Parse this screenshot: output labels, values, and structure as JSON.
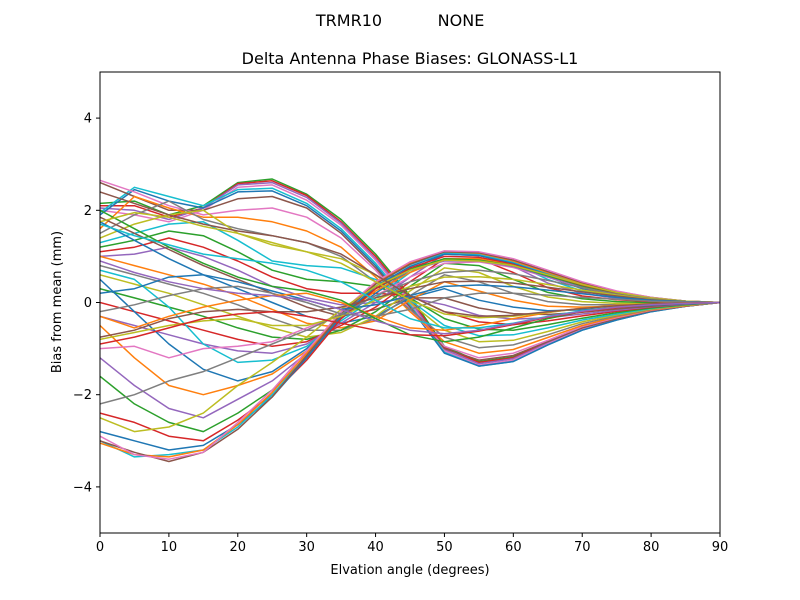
{
  "chart_data": {
    "type": "line",
    "suptitle_left": "TRMR10",
    "suptitle_right": "NONE",
    "title": "Delta Antenna Phase Biases: GLONASS-L1",
    "xlabel": "Elvation angle (degrees)",
    "ylabel": "Bias from mean (mm)",
    "xlim": [
      0,
      90
    ],
    "ylim": [
      -5,
      5
    ],
    "xticks": [
      0,
      10,
      20,
      30,
      40,
      50,
      60,
      70,
      80,
      90
    ],
    "yticks": [
      -4,
      -2,
      0,
      2,
      4
    ],
    "grid": false,
    "legend": "none",
    "x": [
      0,
      5,
      10,
      15,
      20,
      25,
      30,
      35,
      40,
      45,
      50,
      55,
      60,
      65,
      70,
      75,
      80,
      85,
      90
    ],
    "series": [
      {
        "color": "#2ca02c",
        "values": [
          2.15,
          2.2,
          1.9,
          2.1,
          2.6,
          2.68,
          2.35,
          1.8,
          1.05,
          0.15,
          -0.95,
          -1.28,
          -1.18,
          -0.85,
          -0.55,
          -0.35,
          -0.18,
          -0.08,
          0.0
        ]
      },
      {
        "color": "#d62728",
        "values": [
          2.1,
          2.1,
          1.85,
          2.05,
          2.58,
          2.64,
          2.32,
          1.75,
          1.0,
          0.1,
          -0.98,
          -1.3,
          -1.2,
          -0.86,
          -0.56,
          -0.36,
          -0.18,
          -0.08,
          0.0
        ]
      },
      {
        "color": "#9467bd",
        "values": [
          2.05,
          2.0,
          1.8,
          2.05,
          2.55,
          2.6,
          2.28,
          1.72,
          0.95,
          0.05,
          -1.02,
          -1.33,
          -1.22,
          -0.88,
          -0.57,
          -0.36,
          -0.19,
          -0.08,
          0.0
        ]
      },
      {
        "color": "#e377c2",
        "values": [
          2.0,
          1.9,
          1.75,
          2.0,
          2.5,
          2.55,
          2.22,
          1.68,
          0.92,
          0.0,
          -1.05,
          -1.36,
          -1.25,
          -0.9,
          -0.58,
          -0.37,
          -0.19,
          -0.08,
          0.0
        ]
      },
      {
        "color": "#17becf",
        "values": [
          1.95,
          2.5,
          2.3,
          2.1,
          2.45,
          2.48,
          2.15,
          1.6,
          0.85,
          -0.05,
          -1.08,
          -1.38,
          -1.28,
          -0.92,
          -0.6,
          -0.38,
          -0.2,
          -0.08,
          0.0
        ]
      },
      {
        "color": "#1f77b4",
        "values": [
          1.9,
          2.45,
          2.2,
          2.05,
          2.4,
          2.42,
          2.1,
          1.55,
          0.8,
          -0.1,
          -1.1,
          -1.38,
          -1.28,
          -0.92,
          -0.6,
          -0.38,
          -0.2,
          -0.08,
          0.0
        ]
      },
      {
        "color": "#8c564b",
        "values": [
          2.6,
          2.3,
          2.0,
          2.0,
          2.25,
          2.3,
          2.05,
          1.5,
          0.75,
          -0.1,
          -1.0,
          -1.25,
          -1.15,
          -0.85,
          -0.55,
          -0.35,
          -0.18,
          -0.08,
          0.0
        ]
      },
      {
        "color": "#e377c2",
        "values": [
          2.65,
          2.4,
          2.1,
          1.9,
          2.0,
          2.05,
          1.85,
          1.4,
          0.7,
          -0.15,
          -0.95,
          -1.2,
          -1.1,
          -0.82,
          -0.52,
          -0.33,
          -0.17,
          -0.07,
          0.0
        ]
      },
      {
        "color": "#ff7f0e",
        "values": [
          1.6,
          2.3,
          2.05,
          1.85,
          1.85,
          1.75,
          1.55,
          1.2,
          0.55,
          -0.2,
          -0.85,
          -1.1,
          -1.02,
          -0.76,
          -0.5,
          -0.31,
          -0.16,
          -0.07,
          0.0
        ]
      },
      {
        "color": "#7f7f7f",
        "values": [
          1.5,
          1.9,
          2.2,
          1.8,
          1.6,
          1.45,
          1.3,
          1.0,
          0.45,
          -0.15,
          -0.75,
          -0.98,
          -0.92,
          -0.7,
          -0.46,
          -0.29,
          -0.15,
          -0.06,
          0.0
        ]
      },
      {
        "color": "#bcbd22",
        "values": [
          1.4,
          1.7,
          1.9,
          2.0,
          1.5,
          1.25,
          1.1,
          0.95,
          0.6,
          0.0,
          -0.6,
          -0.85,
          -0.82,
          -0.63,
          -0.42,
          -0.27,
          -0.14,
          -0.06,
          0.0
        ]
      },
      {
        "color": "#17becf",
        "values": [
          1.3,
          1.5,
          1.7,
          1.75,
          1.35,
          0.9,
          0.8,
          0.75,
          0.5,
          0.05,
          -0.5,
          -0.72,
          -0.7,
          -0.55,
          -0.38,
          -0.25,
          -0.13,
          -0.05,
          0.0
        ]
      },
      {
        "color": "#2ca02c",
        "values": [
          1.2,
          1.35,
          1.55,
          1.45,
          1.1,
          0.7,
          0.5,
          0.45,
          0.35,
          0.1,
          -0.35,
          -0.58,
          -0.6,
          -0.48,
          -0.34,
          -0.22,
          -0.12,
          -0.05,
          0.0
        ]
      },
      {
        "color": "#d62728",
        "values": [
          1.1,
          1.2,
          1.4,
          1.2,
          0.9,
          0.55,
          0.3,
          0.2,
          0.2,
          0.15,
          -0.2,
          -0.42,
          -0.48,
          -0.4,
          -0.29,
          -0.19,
          -0.1,
          -0.04,
          0.0
        ]
      },
      {
        "color": "#9467bd",
        "values": [
          1.0,
          1.05,
          1.2,
          1.0,
          0.7,
          0.35,
          0.1,
          -0.05,
          0.0,
          0.1,
          -0.05,
          -0.28,
          -0.36,
          -0.33,
          -0.25,
          -0.17,
          -0.09,
          -0.04,
          0.0
        ]
      },
      {
        "color": "#8c564b",
        "values": [
          1.85,
          1.5,
          1.15,
          0.8,
          0.5,
          0.2,
          -0.1,
          -0.3,
          -0.15,
          0.1,
          0.1,
          -0.12,
          -0.24,
          -0.26,
          -0.21,
          -0.14,
          -0.08,
          -0.03,
          0.0
        ]
      },
      {
        "color": "#1f77b4",
        "values": [
          1.75,
          1.35,
          0.95,
          0.6,
          0.3,
          0.0,
          -0.3,
          -0.45,
          -0.3,
          0.1,
          0.3,
          0.05,
          -0.1,
          -0.18,
          -0.16,
          -0.11,
          -0.06,
          -0.03,
          0.0
        ]
      },
      {
        "color": "#ff7f0e",
        "values": [
          1.0,
          0.8,
          0.6,
          0.4,
          0.15,
          -0.15,
          -0.45,
          -0.55,
          -0.4,
          0.05,
          0.45,
          0.25,
          0.05,
          -0.08,
          -0.1,
          -0.08,
          -0.05,
          -0.02,
          0.0
        ]
      },
      {
        "color": "#7f7f7f",
        "values": [
          0.8,
          0.6,
          0.4,
          0.2,
          -0.05,
          -0.35,
          -0.6,
          -0.6,
          -0.35,
          0.15,
          0.6,
          0.45,
          0.2,
          0.02,
          -0.05,
          -0.05,
          -0.03,
          -0.01,
          0.0
        ]
      },
      {
        "color": "#bcbd22",
        "values": [
          0.6,
          0.4,
          0.2,
          -0.05,
          -0.3,
          -0.55,
          -0.75,
          -0.65,
          -0.3,
          0.25,
          0.75,
          0.65,
          0.35,
          0.12,
          0.02,
          -0.02,
          -0.02,
          -0.01,
          0.0
        ]
      },
      {
        "color": "#2ca02c",
        "values": [
          0.3,
          0.1,
          -0.1,
          -0.3,
          -0.55,
          -0.75,
          -0.8,
          -0.6,
          -0.2,
          0.35,
          0.85,
          0.8,
          0.5,
          0.22,
          0.08,
          0.02,
          0.0,
          0.0,
          0.0
        ]
      },
      {
        "color": "#d62728",
        "values": [
          0.0,
          -0.2,
          -0.4,
          -0.6,
          -0.8,
          -0.95,
          -0.85,
          -0.5,
          -0.1,
          0.45,
          0.95,
          0.95,
          0.65,
          0.32,
          0.14,
          0.06,
          0.02,
          0.0,
          0.0
        ]
      },
      {
        "color": "#9467bd",
        "values": [
          -0.3,
          -0.5,
          -0.7,
          -0.9,
          -1.05,
          -1.1,
          -0.9,
          -0.45,
          0.0,
          0.55,
          1.05,
          1.05,
          0.78,
          0.42,
          0.2,
          0.09,
          0.03,
          0.01,
          0.0
        ]
      },
      {
        "color": "#17becf",
        "values": [
          0.7,
          0.5,
          -0.1,
          -0.9,
          -1.3,
          -1.25,
          -0.95,
          -0.4,
          0.1,
          0.65,
          1.1,
          1.08,
          0.85,
          0.5,
          0.25,
          0.12,
          0.05,
          0.01,
          0.0
        ]
      },
      {
        "color": "#1f77b4",
        "values": [
          0.5,
          -0.2,
          -0.9,
          -1.45,
          -1.7,
          -1.5,
          -1.0,
          -0.35,
          0.2,
          0.7,
          1.05,
          1.02,
          0.85,
          0.55,
          0.3,
          0.15,
          0.06,
          0.02,
          0.0
        ]
      },
      {
        "color": "#ff7f0e",
        "values": [
          -0.5,
          -1.2,
          -1.8,
          -2.0,
          -1.8,
          -1.55,
          -1.05,
          -0.3,
          0.25,
          0.65,
          0.95,
          0.95,
          0.82,
          0.56,
          0.32,
          0.17,
          0.07,
          0.02,
          0.0
        ]
      },
      {
        "color": "#e377c2",
        "values": [
          -1.0,
          -0.95,
          -1.2,
          -1.0,
          -0.95,
          -0.85,
          -0.55,
          -0.25,
          0.15,
          0.55,
          0.85,
          0.88,
          0.76,
          0.55,
          0.33,
          0.18,
          0.08,
          0.02,
          0.0
        ]
      },
      {
        "color": "#9467bd",
        "values": [
          -1.2,
          -1.8,
          -2.3,
          -2.5,
          -2.1,
          -1.7,
          -1.1,
          -0.25,
          0.3,
          0.7,
          0.9,
          0.9,
          0.78,
          0.56,
          0.34,
          0.19,
          0.08,
          0.02,
          0.0
        ]
      },
      {
        "color": "#2ca02c",
        "values": [
          -1.6,
          -2.2,
          -2.6,
          -2.8,
          -2.4,
          -1.9,
          -1.2,
          -0.3,
          0.3,
          0.72,
          0.95,
          0.92,
          0.8,
          0.58,
          0.36,
          0.2,
          0.09,
          0.03,
          0.0
        ]
      },
      {
        "color": "#d62728",
        "values": [
          -2.4,
          -2.6,
          -2.9,
          -3.0,
          -2.55,
          -2.0,
          -1.25,
          -0.35,
          0.3,
          0.75,
          1.0,
          0.98,
          0.84,
          0.6,
          0.38,
          0.21,
          0.09,
          0.03,
          0.0
        ]
      },
      {
        "color": "#1f77b4",
        "values": [
          -2.8,
          -3.0,
          -3.2,
          -3.1,
          -2.65,
          -2.05,
          -1.2,
          -0.3,
          0.35,
          0.78,
          1.05,
          1.02,
          0.86,
          0.62,
          0.4,
          0.22,
          0.1,
          0.03,
          0.0
        ]
      },
      {
        "color": "#17becf",
        "values": [
          -3.0,
          -3.35,
          -3.3,
          -3.2,
          -2.7,
          -2.0,
          -1.15,
          -0.25,
          0.4,
          0.82,
          1.08,
          1.05,
          0.88,
          0.64,
          0.41,
          0.23,
          0.1,
          0.03,
          0.0
        ]
      },
      {
        "color": "#ff7f0e",
        "values": [
          -3.05,
          -3.3,
          -3.35,
          -3.2,
          -2.65,
          -1.95,
          -1.1,
          -0.2,
          0.42,
          0.85,
          1.1,
          1.07,
          0.9,
          0.65,
          0.42,
          0.24,
          0.1,
          0.03,
          0.0
        ]
      },
      {
        "color": "#8c564b",
        "values": [
          -3.0,
          -3.25,
          -3.45,
          -3.25,
          -2.75,
          -2.05,
          -1.15,
          -0.25,
          0.4,
          0.83,
          1.1,
          1.08,
          0.92,
          0.67,
          0.43,
          0.24,
          0.11,
          0.03,
          0.0
        ]
      },
      {
        "color": "#e377c2",
        "values": [
          -2.9,
          -3.3,
          -3.4,
          -3.25,
          -2.6,
          -1.9,
          -1.05,
          -0.2,
          0.45,
          0.88,
          1.12,
          1.1,
          0.95,
          0.7,
          0.45,
          0.25,
          0.11,
          0.03,
          0.0
        ]
      },
      {
        "color": "#bcbd22",
        "values": [
          -2.5,
          -2.8,
          -2.7,
          -2.4,
          -1.8,
          -1.3,
          -0.75,
          -0.15,
          0.35,
          0.7,
          0.92,
          0.9,
          0.8,
          0.6,
          0.39,
          0.22,
          0.1,
          0.03,
          0.0
        ]
      },
      {
        "color": "#7f7f7f",
        "values": [
          -2.2,
          -2.0,
          -1.7,
          -1.5,
          -1.2,
          -0.9,
          -0.6,
          -0.25,
          0.15,
          0.45,
          0.65,
          0.7,
          0.62,
          0.48,
          0.32,
          0.18,
          0.08,
          0.02,
          0.0
        ]
      },
      {
        "color": "#bcbd22",
        "values": [
          -0.8,
          -0.65,
          -0.5,
          -0.4,
          -0.35,
          -0.5,
          -0.5,
          -0.3,
          0.05,
          0.35,
          0.55,
          0.56,
          0.5,
          0.39,
          0.27,
          0.16,
          0.07,
          0.02,
          0.0
        ]
      },
      {
        "color": "#8c564b",
        "values": [
          -0.75,
          -0.6,
          -0.35,
          -0.2,
          -0.15,
          -0.2,
          -0.2,
          -0.1,
          0.1,
          0.3,
          0.45,
          0.46,
          0.42,
          0.33,
          0.23,
          0.14,
          0.06,
          0.02,
          0.0
        ]
      },
      {
        "color": "#1f77b4",
        "values": [
          0.2,
          0.3,
          0.55,
          0.6,
          0.45,
          0.25,
          0.05,
          -0.15,
          -0.05,
          0.15,
          0.35,
          0.38,
          0.34,
          0.27,
          0.19,
          0.11,
          0.05,
          0.02,
          0.0
        ]
      },
      {
        "color": "#7f7f7f",
        "values": [
          -0.2,
          -0.05,
          0.15,
          0.3,
          0.35,
          0.2,
          0.0,
          -0.25,
          -0.3,
          -0.15,
          0.1,
          0.2,
          0.2,
          0.16,
          0.11,
          0.07,
          0.03,
          0.01,
          0.0
        ]
      },
      {
        "color": "#ff7f0e",
        "values": [
          -0.3,
          -0.55,
          -0.3,
          -0.1,
          0.05,
          0.15,
          0.2,
          0.0,
          -0.3,
          -0.55,
          -0.6,
          -0.5,
          -0.35,
          -0.22,
          -0.12,
          -0.06,
          -0.03,
          -0.01,
          0.0
        ]
      },
      {
        "color": "#2ca02c",
        "values": [
          2.0,
          1.6,
          1.2,
          0.85,
          0.55,
          0.35,
          0.25,
          0.05,
          -0.35,
          -0.7,
          -0.85,
          -0.75,
          -0.55,
          -0.35,
          -0.2,
          -0.1,
          -0.05,
          -0.02,
          0.0
        ]
      },
      {
        "color": "#17becf",
        "values": [
          1.7,
          1.45,
          1.25,
          1.05,
          0.95,
          0.85,
          0.7,
          0.45,
          0.05,
          -0.35,
          -0.55,
          -0.55,
          -0.45,
          -0.3,
          -0.18,
          -0.1,
          -0.05,
          -0.02,
          0.0
        ]
      },
      {
        "color": "#bcbd22",
        "values": [
          1.75,
          1.95,
          1.85,
          1.65,
          1.5,
          1.3,
          1.1,
          0.85,
          0.45,
          0.05,
          -0.25,
          -0.33,
          -0.3,
          -0.21,
          -0.13,
          -0.07,
          -0.03,
          -0.01,
          0.0
        ]
      },
      {
        "color": "#8c564b",
        "values": [
          2.4,
          2.15,
          1.9,
          1.7,
          1.55,
          1.45,
          1.3,
          1.05,
          0.6,
          0.15,
          -0.2,
          -0.3,
          -0.28,
          -0.2,
          -0.13,
          -0.07,
          -0.03,
          -0.01,
          0.0
        ]
      },
      {
        "color": "#d62728",
        "values": [
          -0.9,
          -0.75,
          -0.55,
          -0.35,
          -0.25,
          -0.2,
          -0.3,
          -0.45,
          -0.6,
          -0.7,
          -0.72,
          -0.62,
          -0.48,
          -0.32,
          -0.2,
          -0.11,
          -0.05,
          -0.02,
          0.0
        ]
      },
      {
        "color": "#9467bd",
        "values": [
          0.9,
          0.65,
          0.45,
          0.3,
          0.2,
          0.15,
          0.05,
          -0.15,
          -0.4,
          -0.6,
          -0.68,
          -0.6,
          -0.46,
          -0.31,
          -0.19,
          -0.1,
          -0.05,
          -0.02,
          0.0
        ]
      }
    ]
  }
}
